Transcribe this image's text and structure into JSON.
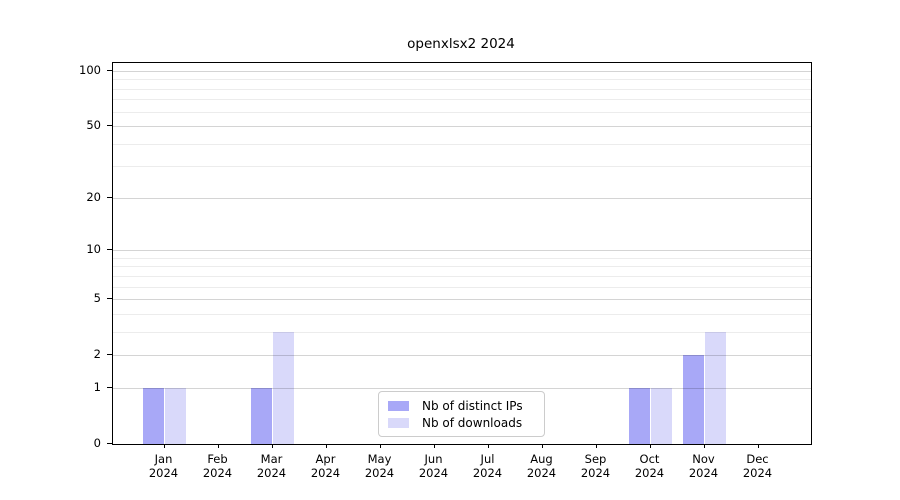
{
  "chart_data": {
    "type": "bar",
    "title": "openxlsx2 2024",
    "categories": [
      "Jan",
      "Feb",
      "Mar",
      "Apr",
      "May",
      "Jun",
      "Jul",
      "Aug",
      "Sep",
      "Oct",
      "Nov",
      "Dec"
    ],
    "category_year": "2024",
    "series": [
      {
        "name": "Nb of distinct IPs",
        "color": "#a8a8f7",
        "values": [
          1,
          0,
          1,
          0,
          0,
          0,
          0,
          0,
          0,
          1,
          2,
          0
        ]
      },
      {
        "name": "Nb of downloads",
        "color": "#d9d9fa",
        "values": [
          1,
          0,
          3,
          0,
          0,
          0,
          0,
          0,
          0,
          1,
          3,
          0
        ]
      }
    ],
    "yscale": "log1p",
    "ylim": [
      0,
      100
    ],
    "yticks": [
      0,
      1,
      2,
      5,
      10,
      20,
      50,
      100
    ],
    "grid": {
      "major_values": [
        1,
        2,
        5,
        10,
        20,
        50,
        100
      ],
      "minor_values": [
        3,
        4,
        6,
        7,
        8,
        9,
        30,
        40,
        60,
        70,
        80,
        90
      ]
    },
    "legend_position": "lower center",
    "colors": {
      "spine": "#000000",
      "background": "#ffffff",
      "major_grid": "#d3d3d3",
      "minor_grid": "#ececec"
    }
  }
}
